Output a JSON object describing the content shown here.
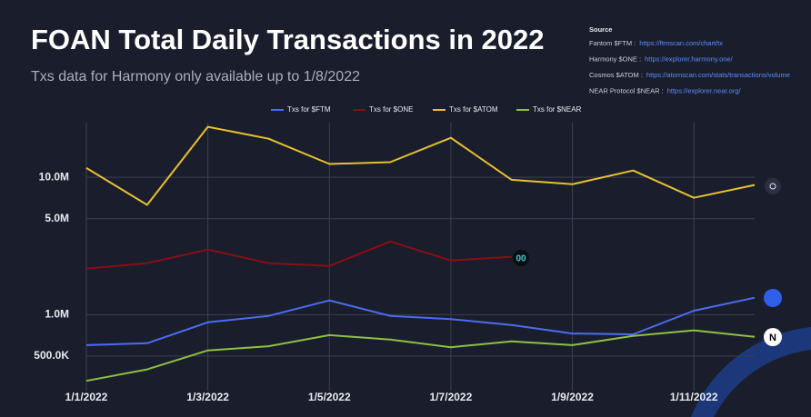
{
  "chart_data": {
    "type": "line",
    "title": "FOAN Total Daily Transactions in 2022",
    "subtitle": "Txs data for Harmony only available up to 1/8/2022",
    "categories": [
      "1/1/2022",
      null,
      "1/3/2022",
      null,
      "1/5/2022",
      null,
      "1/7/2022",
      null,
      "1/9/2022",
      null,
      "1/11/2022",
      null
    ],
    "series": [
      {
        "name": "Txs for $FTM",
        "color": "#4a6cf0",
        "values": [
          600000,
          620000,
          880000,
          980000,
          1270000,
          980000,
          930000,
          840000,
          730000,
          720000,
          1070000,
          1330000
        ]
      },
      {
        "name": "Txs for $ONE",
        "color": "#8b0d14",
        "values": [
          2160000,
          2370000,
          2980000,
          2370000,
          2260000,
          3410000,
          2480000,
          2640000,
          null,
          null,
          null,
          null
        ]
      },
      {
        "name": "Txs for $ATOM",
        "color": "#e8c02e",
        "values": [
          11700000,
          6300000,
          23300000,
          19100000,
          12500000,
          12900000,
          19400000,
          9600000,
          8900000,
          11200000,
          7100000,
          8800000
        ]
      },
      {
        "name": "Txs for $NEAR",
        "color": "#8cc044",
        "values": [
          330000,
          400000,
          550000,
          590000,
          710000,
          660000,
          580000,
          640000,
          600000,
          700000,
          770000,
          690000
        ]
      }
    ],
    "log_scale": true,
    "ylim": [
      280000,
      25000000
    ],
    "yticks": [
      {
        "value": 500000,
        "label": "500.0K"
      },
      {
        "value": 1000000,
        "label": "1.0M"
      },
      {
        "value": 5000000,
        "label": "5.0M"
      },
      {
        "value": 10000000,
        "label": "10.0M"
      }
    ],
    "grid": true,
    "legend": "top"
  },
  "source": {
    "title": "Source",
    "items": [
      {
        "label": "Fantom $FTM :",
        "url": "https://ftmscan.com/chart/tx"
      },
      {
        "label": "Harmony $ONE :",
        "url": "https://explorer.harmony.one/"
      },
      {
        "label": "Cosmos $ATOM :",
        "url": "https://atomscan.com/stats/transactions/volume"
      },
      {
        "label": "NEAR Protocol $NEAR :",
        "url": "https://explorer.near.org/"
      }
    ]
  }
}
